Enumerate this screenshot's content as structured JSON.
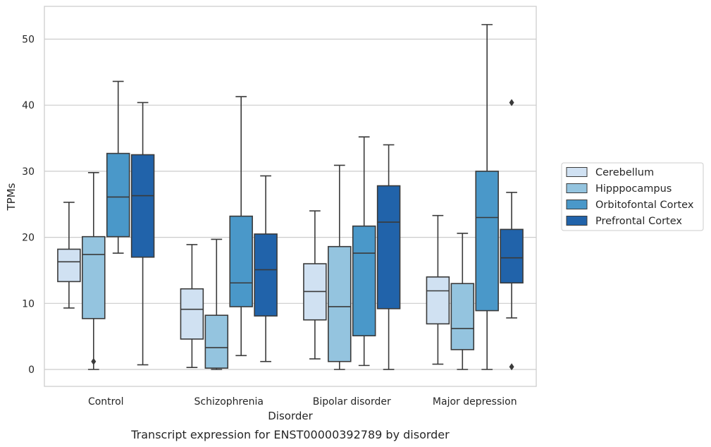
{
  "chart_data": {
    "type": "box",
    "caption": "Transcript expression for ENST00000392789 by disorder",
    "xlabel": "Disorder",
    "ylabel": "TPMs",
    "ylim": [
      -2.5,
      55
    ],
    "yticks": [
      0,
      10,
      20,
      30,
      40,
      50
    ],
    "grid": "horizontal",
    "legend_position": "right",
    "categories": [
      "Control",
      "Schizophrenia",
      "Bipolar disorder",
      "Major depression"
    ],
    "series": [
      {
        "name": "Cerebellum",
        "color": "#d0e1f2",
        "boxes": [
          {
            "whisker_low": 9.3,
            "q1": 13.3,
            "median": 16.3,
            "q3": 18.2,
            "whisker_high": 25.3,
            "outliers": []
          },
          {
            "whisker_low": 0.3,
            "q1": 4.6,
            "median": 9.1,
            "q3": 12.2,
            "whisker_high": 18.9,
            "outliers": []
          },
          {
            "whisker_low": 1.6,
            "q1": 7.5,
            "median": 11.8,
            "q3": 16.0,
            "whisker_high": 24.0,
            "outliers": []
          },
          {
            "whisker_low": 0.8,
            "q1": 6.9,
            "median": 11.9,
            "q3": 14.0,
            "whisker_high": 23.3,
            "outliers": []
          }
        ]
      },
      {
        "name": "Hipppocampus",
        "color": "#94c4df",
        "boxes": [
          {
            "whisker_low": 0.0,
            "q1": 7.7,
            "median": 17.4,
            "q3": 20.1,
            "whisker_high": 29.8,
            "outliers": [
              1.2
            ]
          },
          {
            "whisker_low": 0.0,
            "q1": 0.2,
            "median": 3.3,
            "q3": 8.2,
            "whisker_high": 19.7,
            "outliers": []
          },
          {
            "whisker_low": 0.0,
            "q1": 1.2,
            "median": 9.5,
            "q3": 18.6,
            "whisker_high": 30.9,
            "outliers": []
          },
          {
            "whisker_low": 0.0,
            "q1": 3.0,
            "median": 6.2,
            "q3": 13.0,
            "whisker_high": 20.6,
            "outliers": []
          }
        ]
      },
      {
        "name": "Orbitofontal Cortex",
        "color": "#4a98c9",
        "boxes": [
          {
            "whisker_low": 17.6,
            "q1": 20.1,
            "median": 26.1,
            "q3": 32.7,
            "whisker_high": 43.6,
            "outliers": []
          },
          {
            "whisker_low": 2.1,
            "q1": 9.5,
            "median": 13.1,
            "q3": 23.2,
            "whisker_high": 41.3,
            "outliers": []
          },
          {
            "whisker_low": 0.6,
            "q1": 5.1,
            "median": 17.6,
            "q3": 21.7,
            "whisker_high": 35.2,
            "outliers": []
          },
          {
            "whisker_low": 0.0,
            "q1": 8.9,
            "median": 23.0,
            "q3": 30.0,
            "whisker_high": 52.2,
            "outliers": []
          }
        ]
      },
      {
        "name": "Prefrontal Cortex",
        "color": "#2163aa",
        "boxes": [
          {
            "whisker_low": 0.7,
            "q1": 17.0,
            "median": 26.3,
            "q3": 32.5,
            "whisker_high": 40.4,
            "outliers": []
          },
          {
            "whisker_low": 1.2,
            "q1": 8.1,
            "median": 15.1,
            "q3": 20.5,
            "whisker_high": 29.3,
            "outliers": []
          },
          {
            "whisker_low": 0.0,
            "q1": 9.2,
            "median": 22.3,
            "q3": 27.8,
            "whisker_high": 34.0,
            "outliers": []
          },
          {
            "whisker_low": 7.8,
            "q1": 13.1,
            "median": 16.9,
            "q3": 21.2,
            "whisker_high": 26.8,
            "outliers": [
              40.4,
              0.4
            ]
          }
        ]
      }
    ]
  }
}
